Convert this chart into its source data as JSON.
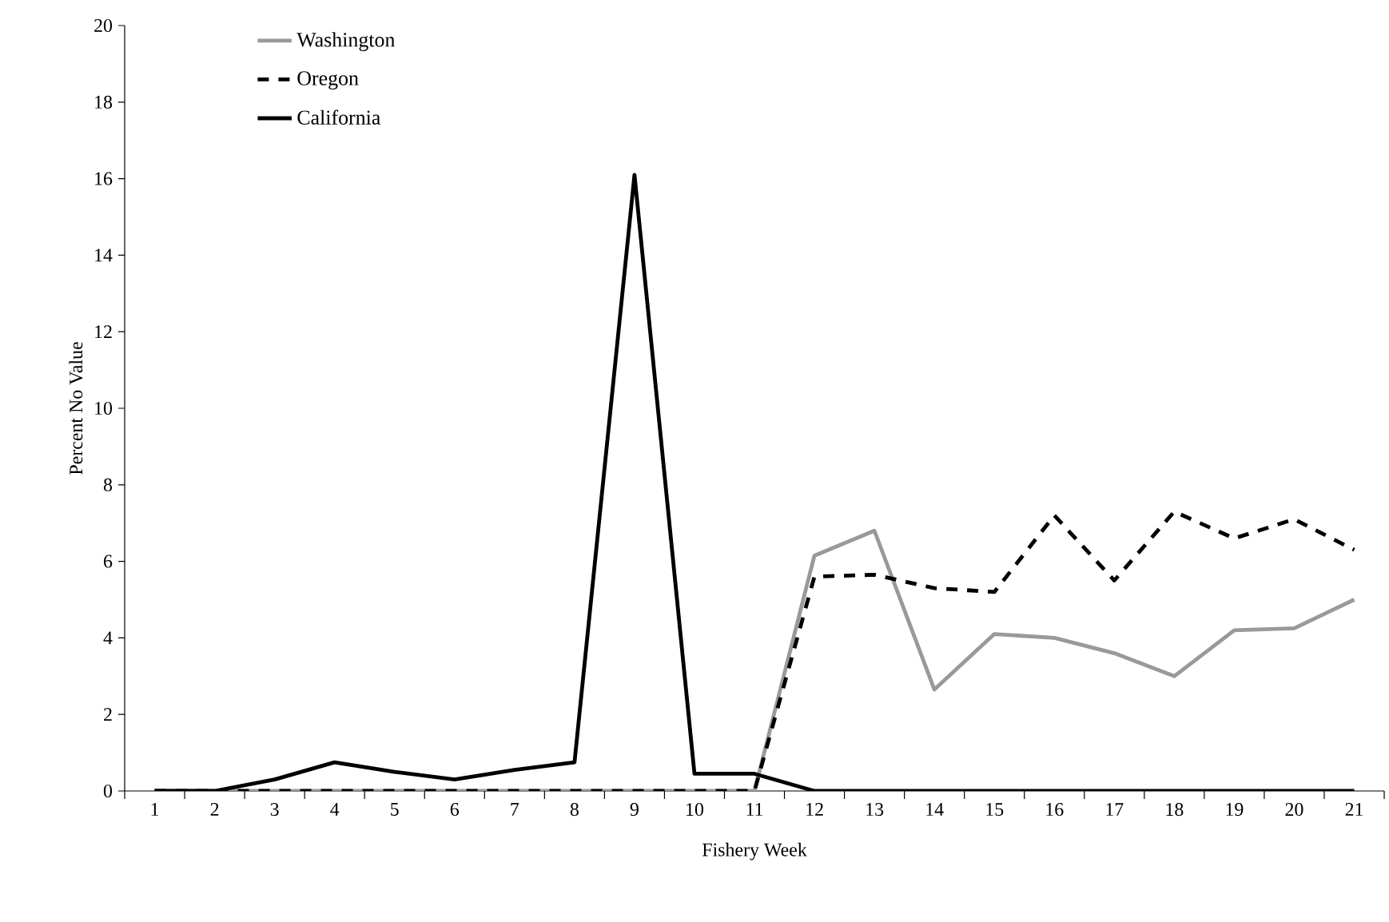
{
  "chart_data": {
    "type": "line",
    "xlabel": "Fishery Week",
    "ylabel": "Percent No Value",
    "categories": [
      "1",
      "2",
      "3",
      "4",
      "5",
      "6",
      "7",
      "8",
      "9",
      "10",
      "11",
      "12",
      "13",
      "14",
      "15",
      "16",
      "17",
      "18",
      "19",
      "20",
      "21"
    ],
    "series": [
      {
        "name": "Washington",
        "color": "#999999",
        "line_style": "solid",
        "values": [
          0,
          0,
          0,
          0,
          0,
          0,
          0,
          0,
          0,
          0,
          0,
          6.15,
          6.8,
          2.65,
          4.1,
          4.0,
          3.6,
          3.0,
          4.2,
          4.25,
          5.0
        ]
      },
      {
        "name": "Oregon",
        "color": "#000000",
        "line_style": "dashed",
        "values": [
          0,
          0,
          0,
          0,
          0,
          0,
          0,
          0,
          0,
          0,
          0,
          5.6,
          5.65,
          5.3,
          5.2,
          7.2,
          5.5,
          7.3,
          6.6,
          7.1,
          6.3
        ]
      },
      {
        "name": "California",
        "color": "#000000",
        "line_style": "solid",
        "values": [
          0,
          0,
          0.3,
          0.75,
          0.5,
          0.3,
          0.55,
          0.75,
          16.1,
          0.45,
          0.45,
          0,
          0,
          0,
          0,
          0,
          0,
          0,
          0,
          0,
          0
        ]
      }
    ],
    "ylim": [
      0,
      20
    ],
    "yticks": [
      0,
      2,
      4,
      6,
      8,
      10,
      12,
      14,
      16,
      18,
      20
    ],
    "grid": false,
    "legend": "top left"
  }
}
